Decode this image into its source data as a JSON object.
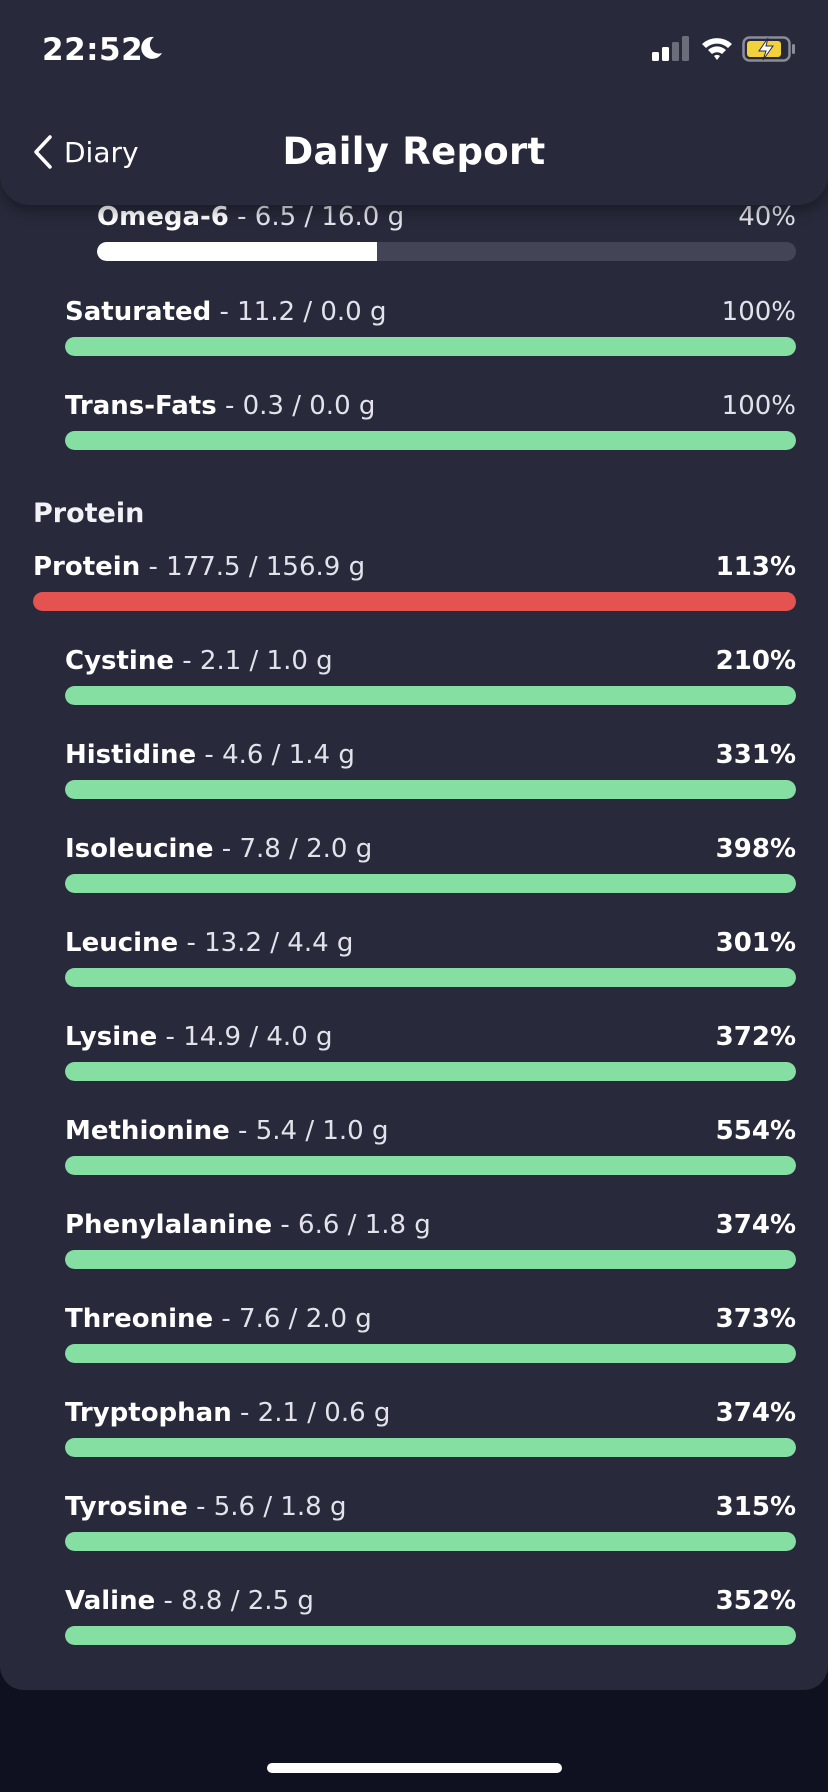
{
  "status_bar": {
    "time": "22:52"
  },
  "header": {
    "back_label": "Diary",
    "title": "Daily Report"
  },
  "section": {
    "label": "Protein"
  },
  "colors": {
    "green": "#86dfa2",
    "red": "#e4534f",
    "white": "#ffffff",
    "track": "#434556"
  },
  "nutrients": [
    {
      "name": "Omega-6",
      "amount": " - 6.5 / 16.0 g",
      "percent": "40%",
      "fill": 0.4,
      "color": "white",
      "bold_pct": false
    },
    {
      "name": "Saturated",
      "amount": " - 11.2 / 0.0 g",
      "percent": "100%",
      "fill": 1.0,
      "color": "green",
      "bold_pct": false
    },
    {
      "name": "Trans-Fats",
      "amount": " - 0.3 / 0.0 g",
      "percent": "100%",
      "fill": 1.0,
      "color": "green",
      "bold_pct": false
    },
    {
      "name": "Protein",
      "amount": " - 177.5 / 156.9 g",
      "percent": "113%",
      "fill": 1.0,
      "color": "red",
      "bold_pct": true
    },
    {
      "name": "Cystine",
      "amount": " - 2.1 / 1.0 g",
      "percent": "210%",
      "fill": 1.0,
      "color": "green",
      "bold_pct": true
    },
    {
      "name": "Histidine",
      "amount": " - 4.6 / 1.4 g",
      "percent": "331%",
      "fill": 1.0,
      "color": "green",
      "bold_pct": true
    },
    {
      "name": "Isoleucine",
      "amount": " - 7.8 / 2.0 g",
      "percent": "398%",
      "fill": 1.0,
      "color": "green",
      "bold_pct": true
    },
    {
      "name": "Leucine",
      "amount": " - 13.2 / 4.4 g",
      "percent": "301%",
      "fill": 1.0,
      "color": "green",
      "bold_pct": true
    },
    {
      "name": "Lysine",
      "amount": " - 14.9 / 4.0 g",
      "percent": "372%",
      "fill": 1.0,
      "color": "green",
      "bold_pct": true
    },
    {
      "name": "Methionine",
      "amount": " - 5.4 / 1.0 g",
      "percent": "554%",
      "fill": 1.0,
      "color": "green",
      "bold_pct": true
    },
    {
      "name": "Phenylalanine",
      "amount": " - 6.6 / 1.8 g",
      "percent": "374%",
      "fill": 1.0,
      "color": "green",
      "bold_pct": true
    },
    {
      "name": "Threonine",
      "amount": " - 7.6 / 2.0 g",
      "percent": "373%",
      "fill": 1.0,
      "color": "green",
      "bold_pct": true
    },
    {
      "name": "Tryptophan",
      "amount": " - 2.1 / 0.6 g",
      "percent": "374%",
      "fill": 1.0,
      "color": "green",
      "bold_pct": true
    },
    {
      "name": "Tyrosine",
      "amount": " - 5.6 / 1.8 g",
      "percent": "315%",
      "fill": 1.0,
      "color": "green",
      "bold_pct": true
    },
    {
      "name": "Valine",
      "amount": " - 8.8 / 2.5 g",
      "percent": "352%",
      "fill": 1.0,
      "color": "green",
      "bold_pct": true
    }
  ]
}
